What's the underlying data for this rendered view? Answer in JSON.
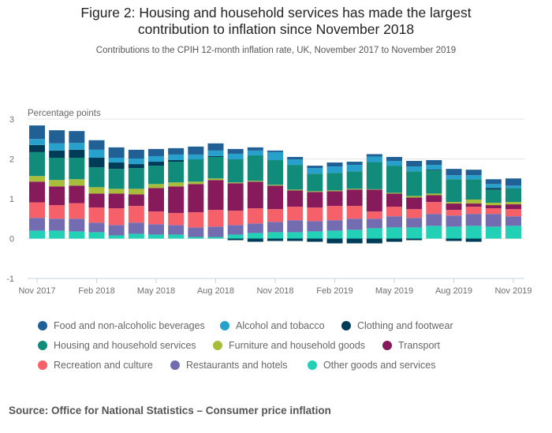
{
  "chart_data": {
    "type": "bar",
    "stacked": true,
    "title": "Figure 2: Housing and household services has made the largest contribution to inflation since November 2018",
    "title_lines": [
      "Figure 2: Housing and household services has made the largest",
      "contribution to inflation since November 2018"
    ],
    "subtitle": "Contributions to the CPIH 12-month inflation rate, UK, November 2017 to November 2019",
    "ylabel": "Percentage points",
    "xlabel": "",
    "ylim": [
      -1,
      3
    ],
    "yticks": [
      3,
      2,
      1,
      0,
      -1
    ],
    "grid": true,
    "legend_position": "bottom",
    "categories": [
      "Nov 2017",
      "Dec 2017",
      "Jan 2018",
      "Feb 2018",
      "Mar 2018",
      "Apr 2018",
      "May 2018",
      "Jun 2018",
      "Jul 2018",
      "Aug 2018",
      "Sep 2018",
      "Oct 2018",
      "Nov 2018",
      "Dec 2018",
      "Jan 2019",
      "Feb 2019",
      "Mar 2019",
      "Apr 2019",
      "May 2019",
      "Jun 2019",
      "Jul 2019",
      "Aug 2019",
      "Sep 2019",
      "Oct 2019",
      "Nov 2019"
    ],
    "xtick_labels": [
      {
        "index": 0,
        "label": "Nov 2017"
      },
      {
        "index": 3,
        "label": "Feb 2018"
      },
      {
        "index": 6,
        "label": "May 2018"
      },
      {
        "index": 9,
        "label": "Aug 2018"
      },
      {
        "index": 12,
        "label": "Nov 2018"
      },
      {
        "index": 15,
        "label": "Feb 2019"
      },
      {
        "index": 18,
        "label": "May 2019"
      },
      {
        "index": 21,
        "label": "Aug 2019"
      },
      {
        "index": 24,
        "label": "Nov 2019"
      }
    ],
    "series": [
      {
        "name": "Other goods and services",
        "color": "#22d0b6",
        "values": [
          0.2,
          0.2,
          0.18,
          0.16,
          0.08,
          0.12,
          0.1,
          0.1,
          0.04,
          0.04,
          0.1,
          0.14,
          0.16,
          0.16,
          0.18,
          0.2,
          0.22,
          0.26,
          0.28,
          0.28,
          0.32,
          0.3,
          0.32,
          0.3,
          0.32
        ]
      },
      {
        "name": "Restaurants and hotels",
        "color": "#746cb1",
        "values": [
          0.32,
          0.3,
          0.32,
          0.24,
          0.26,
          0.28,
          0.26,
          0.24,
          0.24,
          0.26,
          0.24,
          0.24,
          0.26,
          0.3,
          0.26,
          0.26,
          0.28,
          0.24,
          0.28,
          0.24,
          0.3,
          0.28,
          0.3,
          0.32,
          0.24
        ]
      },
      {
        "name": "Recreation and culture",
        "color": "#f66068",
        "values": [
          0.39,
          0.34,
          0.39,
          0.38,
          0.42,
          0.42,
          0.32,
          0.3,
          0.38,
          0.42,
          0.36,
          0.38,
          0.32,
          0.34,
          0.34,
          0.36,
          0.32,
          0.18,
          0.24,
          0.22,
          0.3,
          0.14,
          0.18,
          0.14,
          0.18
        ]
      },
      {
        "name": "Transport",
        "color": "#871a5b",
        "values": [
          0.52,
          0.47,
          0.44,
          0.35,
          0.37,
          0.29,
          0.59,
          0.67,
          0.71,
          0.75,
          0.69,
          0.67,
          0.59,
          0.41,
          0.39,
          0.37,
          0.41,
          0.55,
          0.33,
          0.29,
          0.17,
          0.16,
          0.08,
          0.08,
          0.12
        ]
      },
      {
        "name": "Furniture and household goods",
        "color": "#a8bd3a",
        "values": [
          0.14,
          0.16,
          0.16,
          0.16,
          0.12,
          0.14,
          0.1,
          0.1,
          0.06,
          0.04,
          0.02,
          0.02,
          0.02,
          0.02,
          0.02,
          0.02,
          0.02,
          0.01,
          0.02,
          0.04,
          0.04,
          0.04,
          0.1,
          0.06,
          0.06
        ]
      },
      {
        "name": "Housing and household services",
        "color": "#118c7b",
        "values": [
          0.6,
          0.56,
          0.54,
          0.5,
          0.5,
          0.52,
          0.46,
          0.52,
          0.56,
          0.54,
          0.58,
          0.64,
          0.62,
          0.62,
          0.44,
          0.44,
          0.44,
          0.68,
          0.68,
          0.62,
          0.58,
          0.57,
          0.51,
          0.33,
          0.35
        ]
      },
      {
        "name": "Clothing and footwear",
        "color": "#003c57",
        "values": [
          0.18,
          0.18,
          0.2,
          0.24,
          0.16,
          0.1,
          0.1,
          0.04,
          0.0,
          0.02,
          -0.04,
          -0.08,
          -0.06,
          -0.06,
          -0.08,
          -0.12,
          -0.12,
          -0.12,
          -0.08,
          -0.04,
          0.02,
          -0.06,
          -0.08,
          0.04,
          0.0
        ]
      },
      {
        "name": "Alcohol and tobacco",
        "color": "#27a0cc",
        "values": [
          0.15,
          0.18,
          0.17,
          0.2,
          0.12,
          0.14,
          0.14,
          0.14,
          0.12,
          0.14,
          0.14,
          0.12,
          0.2,
          0.14,
          0.14,
          0.16,
          0.16,
          0.14,
          0.12,
          0.12,
          0.12,
          0.1,
          0.1,
          0.1,
          0.06
        ]
      },
      {
        "name": "Food and non-alcoholic beverages",
        "color": "#206095",
        "values": [
          0.34,
          0.33,
          0.3,
          0.24,
          0.26,
          0.22,
          0.18,
          0.16,
          0.2,
          0.18,
          0.12,
          0.08,
          0.04,
          0.06,
          0.06,
          0.1,
          0.08,
          0.06,
          0.1,
          0.14,
          0.12,
          0.16,
          0.14,
          0.12,
          0.18
        ]
      }
    ]
  },
  "legend": {
    "rows": [
      [
        {
          "name": "Food and non-alcoholic beverages",
          "color": "#206095"
        },
        {
          "name": "Alcohol and tobacco",
          "color": "#27a0cc"
        },
        {
          "name": "Clothing and footwear",
          "color": "#003c57"
        }
      ],
      [
        {
          "name": "Housing and household services",
          "color": "#118c7b"
        },
        {
          "name": "Furniture and household goods",
          "color": "#a8bd3a"
        },
        {
          "name": "Transport",
          "color": "#871a5b"
        }
      ],
      [
        {
          "name": "Recreation and culture",
          "color": "#f66068"
        },
        {
          "name": "Restaurants and hotels",
          "color": "#746cb1"
        },
        {
          "name": "Other goods and services",
          "color": "#22d0b6"
        }
      ]
    ]
  },
  "source": "Source: Office for National Statistics – Consumer price inflation"
}
